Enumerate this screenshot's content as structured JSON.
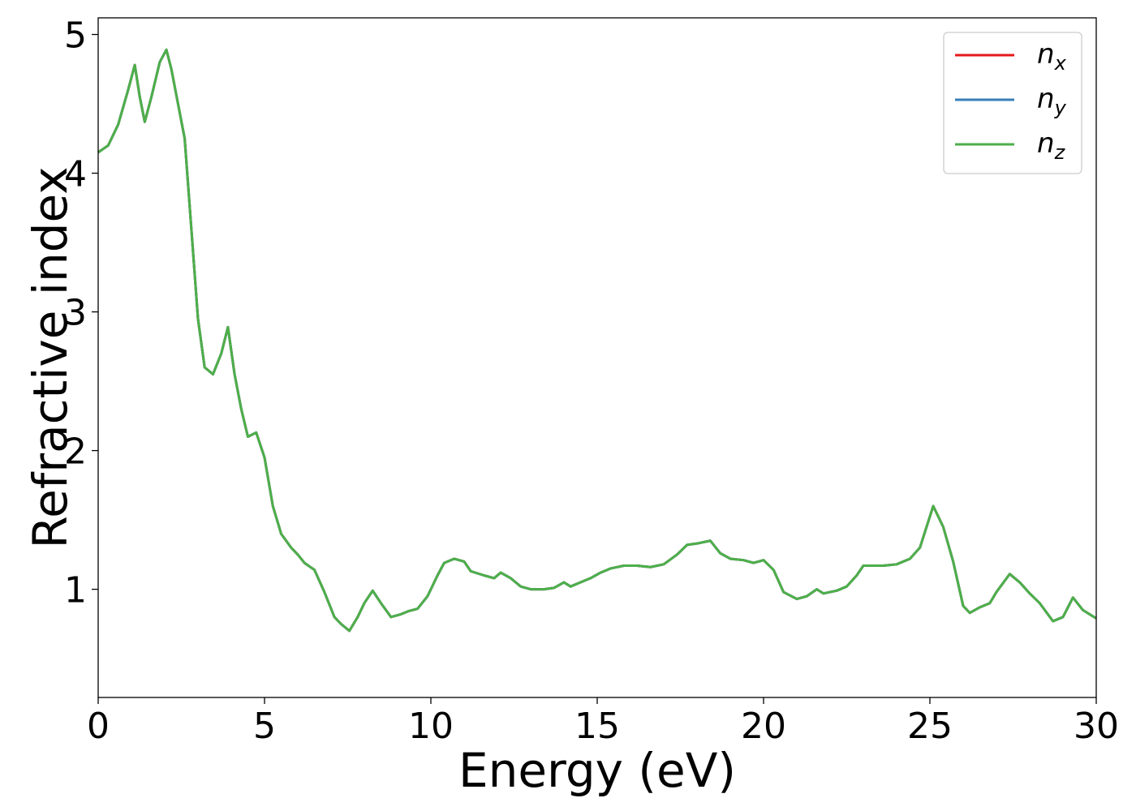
{
  "chart_data": {
    "type": "line",
    "xlabel": "Energy (eV)",
    "ylabel": "Refractive index",
    "xlim": [
      0,
      30
    ],
    "ylim": [
      0.22,
      5.12
    ],
    "xticks": [
      0,
      5,
      10,
      15,
      20,
      25,
      30
    ],
    "xtick_labels": [
      "0",
      "5",
      "10",
      "15",
      "20",
      "25",
      "30"
    ],
    "yticks": [
      1,
      2,
      3,
      4,
      5
    ],
    "ytick_labels": [
      "1",
      "2",
      "3",
      "4",
      "5"
    ],
    "grid": false,
    "legend_position": "top-right",
    "series": [
      {
        "name": "n_x",
        "label_base": "n",
        "label_sub": "x",
        "color": "#e41a1c",
        "curve": "shared"
      },
      {
        "name": "n_y",
        "label_base": "n",
        "label_sub": "y",
        "color": "#377eb8",
        "curve": "shared"
      },
      {
        "name": "n_z",
        "label_base": "n",
        "label_sub": "z",
        "color": "#4daf4a",
        "curve": "shared"
      }
    ],
    "shared_curve": {
      "x": [
        0,
        0.3,
        0.6,
        0.9,
        1.1,
        1.25,
        1.4,
        1.6,
        1.85,
        2.05,
        2.2,
        2.4,
        2.6,
        2.8,
        3.0,
        3.2,
        3.45,
        3.7,
        3.9,
        4.1,
        4.3,
        4.5,
        4.75,
        5.0,
        5.25,
        5.5,
        5.8,
        6.0,
        6.2,
        6.5,
        6.8,
        7.1,
        7.3,
        7.55,
        7.8,
        8.0,
        8.25,
        8.5,
        8.8,
        9.1,
        9.3,
        9.6,
        9.9,
        10.2,
        10.4,
        10.7,
        11.0,
        11.2,
        11.6,
        11.9,
        12.1,
        12.4,
        12.7,
        13.0,
        13.4,
        13.7,
        14.0,
        14.2,
        14.5,
        14.8,
        15.1,
        15.4,
        15.8,
        16.2,
        16.6,
        17.0,
        17.4,
        17.7,
        18.0,
        18.4,
        18.7,
        19.0,
        19.4,
        19.7,
        20.0,
        20.3,
        20.6,
        21.0,
        21.3,
        21.6,
        21.8,
        22.2,
        22.5,
        22.8,
        23.0,
        23.3,
        23.6,
        24.0,
        24.4,
        24.7,
        25.1,
        25.4,
        25.7,
        26.0,
        26.2,
        26.5,
        26.8,
        27.0,
        27.4,
        27.7,
        28.0,
        28.3,
        28.7,
        29.0,
        29.3,
        29.6,
        30.0
      ],
      "y": [
        4.15,
        4.2,
        4.35,
        4.6,
        4.78,
        4.55,
        4.37,
        4.55,
        4.8,
        4.89,
        4.75,
        4.5,
        4.25,
        3.6,
        2.95,
        2.6,
        2.55,
        2.7,
        2.89,
        2.55,
        2.3,
        2.1,
        2.13,
        1.95,
        1.6,
        1.4,
        1.3,
        1.25,
        1.19,
        1.14,
        0.98,
        0.8,
        0.75,
        0.7,
        0.8,
        0.9,
        0.99,
        0.9,
        0.8,
        0.82,
        0.84,
        0.86,
        0.95,
        1.1,
        1.19,
        1.22,
        1.2,
        1.13,
        1.1,
        1.08,
        1.12,
        1.08,
        1.02,
        1.0,
        1.0,
        1.01,
        1.05,
        1.02,
        1.05,
        1.08,
        1.12,
        1.15,
        1.17,
        1.17,
        1.16,
        1.18,
        1.25,
        1.32,
        1.33,
        1.35,
        1.26,
        1.22,
        1.21,
        1.19,
        1.21,
        1.14,
        0.98,
        0.93,
        0.95,
        1.0,
        0.97,
        0.99,
        1.02,
        1.1,
        1.17,
        1.17,
        1.17,
        1.18,
        1.22,
        1.3,
        1.6,
        1.45,
        1.2,
        0.88,
        0.83,
        0.87,
        0.9,
        0.98,
        1.11,
        1.05,
        0.97,
        0.9,
        0.77,
        0.8,
        0.94,
        0.85,
        0.79
      ]
    }
  }
}
